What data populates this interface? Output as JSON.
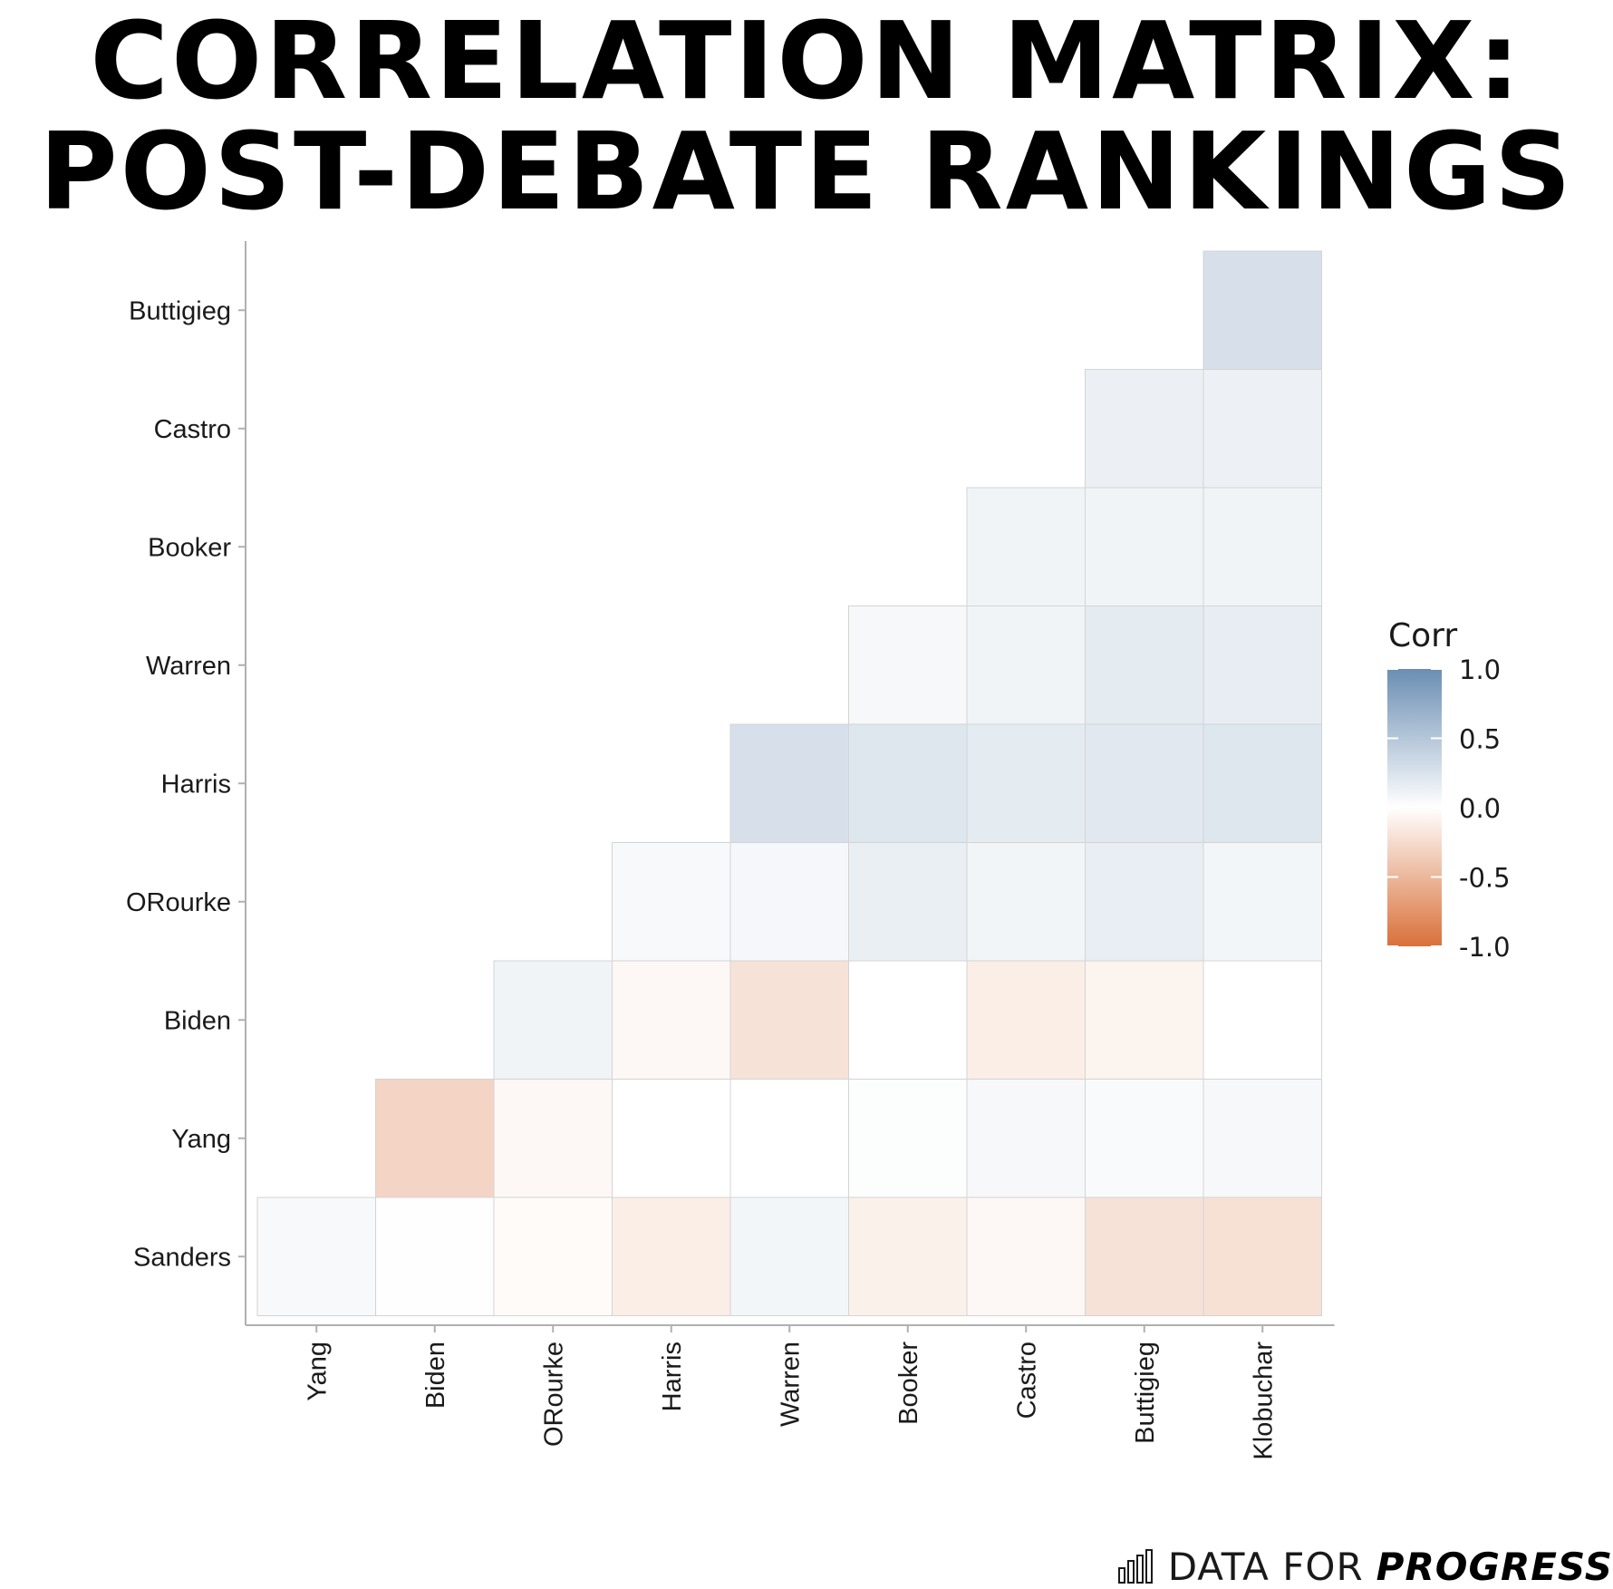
{
  "title": {
    "line1": "CORRELATION MATRIX:",
    "line2": "POST-DEBATE RANKINGS"
  },
  "brand": {
    "light_text": "DATA FOR",
    "bold_text": "PROGRESS",
    "icon": "bar-chart-icon"
  },
  "colors": {
    "positive": "#6b8eb3",
    "neutral": "#ffffff",
    "negative": "#d9703a",
    "tile_border": "#d4d4d4",
    "axis": "#b0b0b0"
  },
  "chart_data": {
    "type": "heatmap",
    "title": "CORRELATION MATRIX: POST-DEBATE RANKINGS",
    "x": [
      "Yang",
      "Biden",
      "ORourke",
      "Harris",
      "Warren",
      "Booker",
      "Castro",
      "Buttigieg",
      "Klobuchar"
    ],
    "y": [
      "Sanders",
      "Yang",
      "Biden",
      "ORourke",
      "Harris",
      "Warren",
      "Booker",
      "Castro",
      "Buttigieg"
    ],
    "values": [
      [
        0.05,
        0.01,
        -0.03,
        -0.12,
        0.08,
        -0.1,
        -0.05,
        -0.2,
        -0.22
      ],
      [
        null,
        -0.3,
        -0.05,
        0.0,
        0.0,
        0.02,
        0.06,
        0.04,
        0.06
      ],
      [
        null,
        null,
        0.1,
        -0.05,
        -0.2,
        0.0,
        -0.12,
        -0.08,
        0.0
      ],
      [
        null,
        null,
        null,
        0.05,
        0.07,
        0.14,
        0.09,
        0.15,
        0.08
      ],
      [
        null,
        null,
        null,
        null,
        0.27,
        0.22,
        0.18,
        0.2,
        0.22
      ],
      [
        null,
        null,
        null,
        null,
        null,
        0.06,
        0.1,
        0.18,
        0.16
      ],
      [
        null,
        null,
        null,
        null,
        null,
        null,
        0.1,
        0.1,
        0.1
      ],
      [
        null,
        null,
        null,
        null,
        null,
        null,
        null,
        0.13,
        0.12
      ],
      [
        null,
        null,
        null,
        null,
        null,
        null,
        null,
        null,
        0.28
      ]
    ],
    "legend": {
      "title": "Corr",
      "ticks": [
        1.0,
        0.5,
        0.0,
        -0.5,
        -1.0
      ],
      "tick_labels": [
        "1.0",
        "0.5",
        "0.0",
        "-0.5",
        "-1.0"
      ],
      "range": [
        -1,
        1
      ],
      "placement": "right"
    }
  }
}
